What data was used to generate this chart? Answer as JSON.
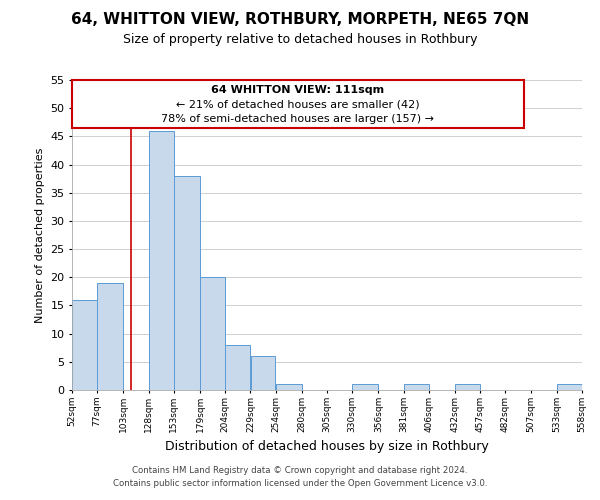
{
  "title": "64, WHITTON VIEW, ROTHBURY, MORPETH, NE65 7QN",
  "subtitle": "Size of property relative to detached houses in Rothbury",
  "xlabel": "Distribution of detached houses by size in Rothbury",
  "ylabel": "Number of detached properties",
  "bin_edges": [
    52,
    77,
    103,
    128,
    153,
    179,
    204,
    229,
    254,
    280,
    305,
    330,
    356,
    381,
    406,
    432,
    457,
    482,
    507,
    533,
    558
  ],
  "bar_heights": [
    16,
    19,
    0,
    46,
    38,
    20,
    8,
    6,
    1,
    0,
    0,
    1,
    0,
    1,
    0,
    1,
    0,
    0,
    0,
    1
  ],
  "bar_color": "#c9d9ec",
  "bar_edgecolor": "#5b9bd5",
  "property_line_x": 111,
  "property_line_color": "#cc0000",
  "ylim": [
    0,
    55
  ],
  "yticks": [
    0,
    5,
    10,
    15,
    20,
    25,
    30,
    35,
    40,
    45,
    50,
    55
  ],
  "ann_line1": "64 WHITTON VIEW: 111sqm",
  "ann_line2": "← 21% of detached houses are smaller (42)",
  "ann_line3": "78% of semi-detached houses are larger (157) →",
  "annotation_box_color": "#ffffff",
  "annotation_box_edgecolor": "#cc0000",
  "tick_labels": [
    "52sqm",
    "77sqm",
    "103sqm",
    "128sqm",
    "153sqm",
    "179sqm",
    "204sqm",
    "229sqm",
    "254sqm",
    "280sqm",
    "305sqm",
    "330sqm",
    "356sqm",
    "381sqm",
    "406sqm",
    "432sqm",
    "457sqm",
    "482sqm",
    "507sqm",
    "533sqm",
    "558sqm"
  ],
  "footer_line1": "Contains HM Land Registry data © Crown copyright and database right 2024.",
  "footer_line2": "Contains public sector information licensed under the Open Government Licence v3.0.",
  "background_color": "#ffffff",
  "grid_color": "#d0d0d0"
}
